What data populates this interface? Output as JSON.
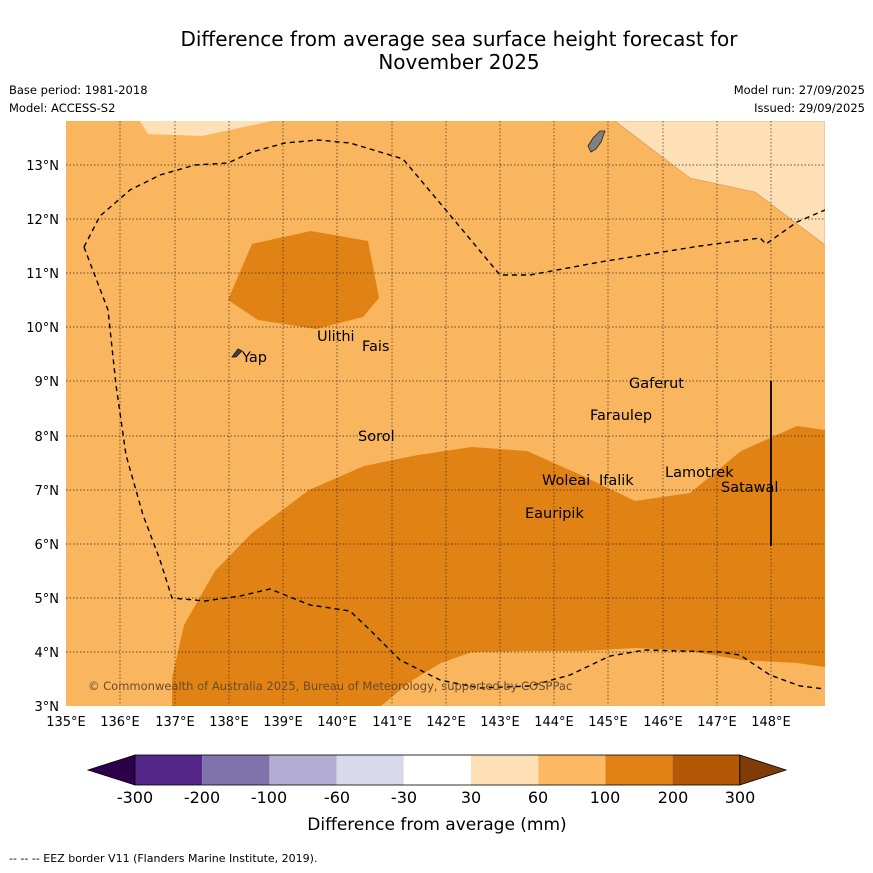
{
  "title": {
    "line1": "Difference from average sea surface height forecast for",
    "line2": "November 2025"
  },
  "meta": {
    "base_period": "Base period: 1981-2018",
    "model": "Model: ACCESS-S2",
    "model_run": "Model run: 27/09/2025",
    "issued": "Issued: 29/09/2025"
  },
  "map": {
    "lon_labels": [
      "135°E",
      "136°E",
      "137°E",
      "138°E",
      "139°E",
      "140°E",
      "141°E",
      "142°E",
      "143°E",
      "144°E",
      "145°E",
      "146°E",
      "147°E",
      "148°E"
    ],
    "lat_labels": [
      "3°N",
      "4°N",
      "5°N",
      "6°N",
      "7°N",
      "8°N",
      "9°N",
      "10°N",
      "11°N",
      "12°N",
      "13°N"
    ],
    "places": [
      {
        "name": "Yap"
      },
      {
        "name": "Ulithi"
      },
      {
        "name": "Fais"
      },
      {
        "name": "Sorol"
      },
      {
        "name": "Gaferut"
      },
      {
        "name": "Faraulep"
      },
      {
        "name": "Woleai"
      },
      {
        "name": "Ifalik"
      },
      {
        "name": "Lamotrek"
      },
      {
        "name": "Satawal"
      },
      {
        "name": "Eauripik"
      }
    ],
    "copyright": "© Commonwealth of Australia 2025, Bureau of Meteorology, supported by COSPPac",
    "colors": {
      "land": "#808080",
      "band_30_60": "#fde0b6",
      "band_60_100": "#f9b65e",
      "band_100_200": "#e08214",
      "eez_line": "#000000"
    }
  },
  "colorbar": {
    "ticks": [
      "-300",
      "-200",
      "-100",
      "-60",
      "-30",
      "30",
      "60",
      "100",
      "200",
      "300"
    ],
    "colors": [
      "#2d004b",
      "#542788",
      "#8073ac",
      "#b2abd2",
      "#d8daeb",
      "#ffffff",
      "#fee0b6",
      "#fdb863",
      "#e08214",
      "#b35806",
      "#7f3b08"
    ],
    "label": "Difference from average (mm)"
  },
  "footnote": "--  --  -- EEZ border V11 (Flanders Marine Institute, 2019)."
}
